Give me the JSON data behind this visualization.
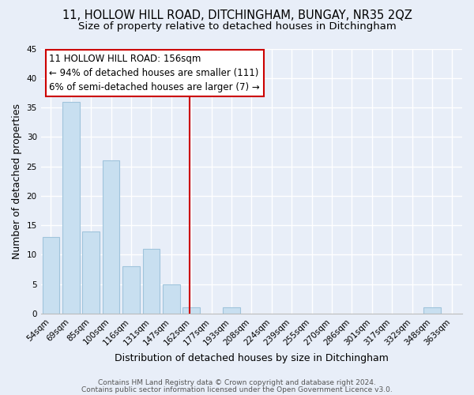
{
  "title": "11, HOLLOW HILL ROAD, DITCHINGHAM, BUNGAY, NR35 2QZ",
  "subtitle": "Size of property relative to detached houses in Ditchingham",
  "xlabel": "Distribution of detached houses by size in Ditchingham",
  "ylabel": "Number of detached properties",
  "bar_labels": [
    "54sqm",
    "69sqm",
    "85sqm",
    "100sqm",
    "116sqm",
    "131sqm",
    "147sqm",
    "162sqm",
    "177sqm",
    "193sqm",
    "208sqm",
    "224sqm",
    "239sqm",
    "255sqm",
    "270sqm",
    "286sqm",
    "301sqm",
    "317sqm",
    "332sqm",
    "348sqm",
    "363sqm"
  ],
  "bar_heights": [
    13,
    36,
    14,
    26,
    8,
    11,
    5,
    1,
    0,
    1,
    0,
    0,
    0,
    0,
    0,
    0,
    0,
    0,
    0,
    1,
    0
  ],
  "bar_color": "#c8dff0",
  "bar_edge_color": "#a0c4dc",
  "vline_color": "#cc0000",
  "annotation_title": "11 HOLLOW HILL ROAD: 156sqm",
  "annotation_line1": "← 94% of detached houses are smaller (111)",
  "annotation_line2": "6% of semi-detached houses are larger (7) →",
  "annotation_box_color": "white",
  "annotation_box_edge": "#cc0000",
  "ylim": [
    0,
    45
  ],
  "yticks": [
    0,
    5,
    10,
    15,
    20,
    25,
    30,
    35,
    40,
    45
  ],
  "footer1": "Contains HM Land Registry data © Crown copyright and database right 2024.",
  "footer2": "Contains public sector information licensed under the Open Government Licence v3.0.",
  "bg_color": "#e8eef8",
  "grid_color": "#ffffff",
  "title_fontsize": 10.5,
  "subtitle_fontsize": 9.5,
  "annotation_fontsize": 8.5,
  "axis_label_fontsize": 9,
  "tick_fontsize": 7.5,
  "footer_fontsize": 6.5
}
